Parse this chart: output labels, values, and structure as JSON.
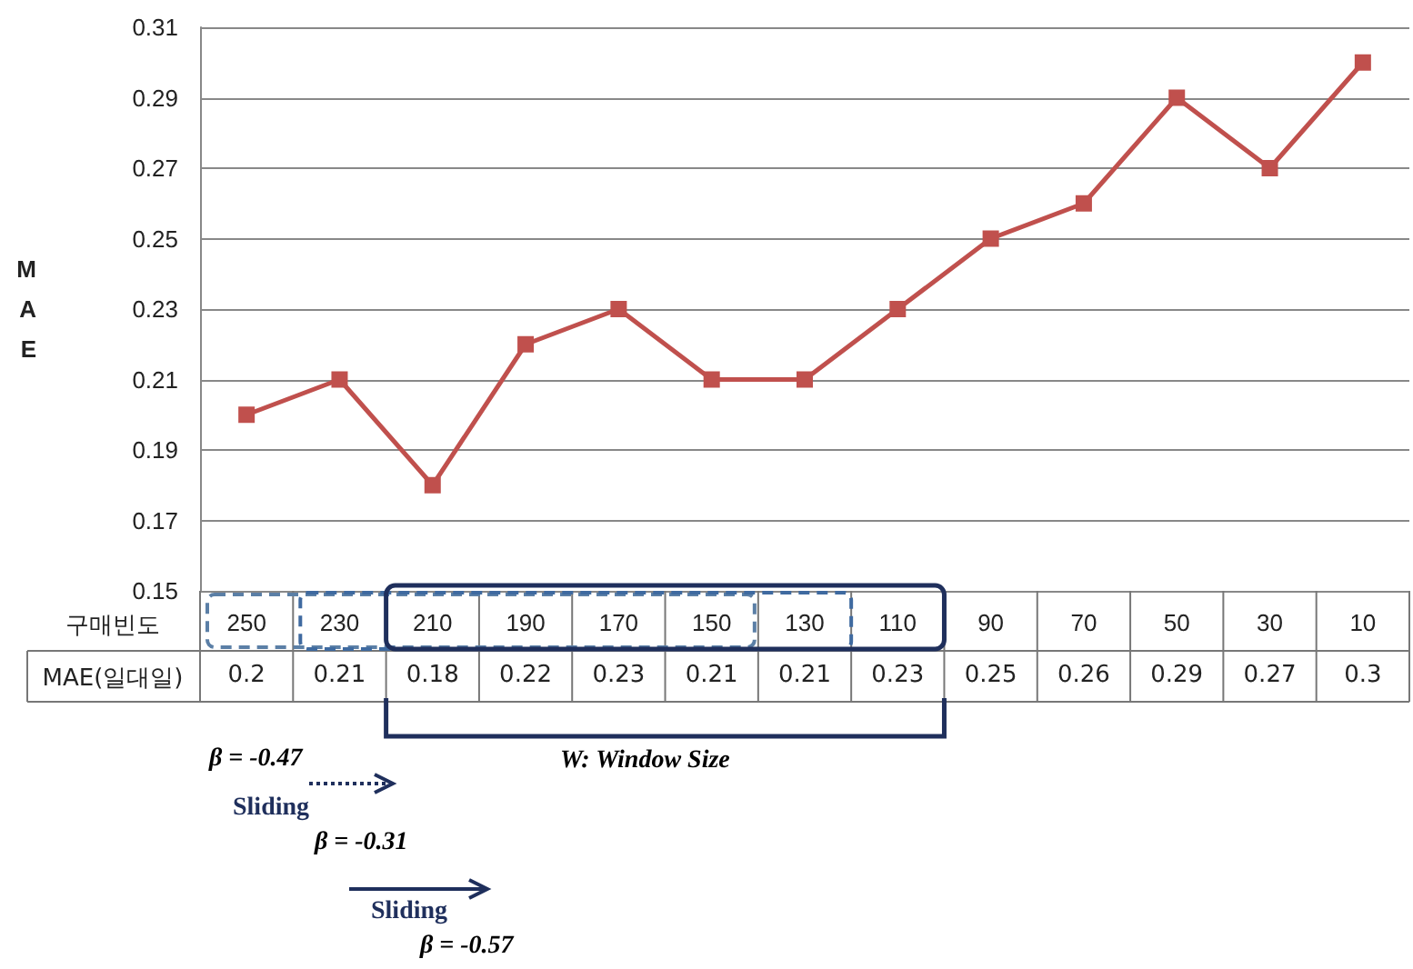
{
  "chart_data": {
    "type": "line",
    "xlabel": "구매빈도",
    "ylabel": "MAE",
    "categories": [
      "250",
      "230",
      "210",
      "190",
      "170",
      "150",
      "130",
      "110",
      "90",
      "70",
      "50",
      "30",
      "10"
    ],
    "series": [
      {
        "name": "MAE(일대일)",
        "color": "#c0504d",
        "values": [
          0.2,
          0.21,
          0.18,
          0.22,
          0.23,
          0.21,
          0.21,
          0.23,
          0.25,
          0.26,
          0.29,
          0.27,
          0.3
        ]
      }
    ],
    "ylim": [
      0.15,
      0.31
    ],
    "yticks": [
      0.15,
      0.17,
      0.19,
      0.21,
      0.23,
      0.25,
      0.27,
      0.29,
      0.31
    ],
    "grid": "y",
    "marker": "square",
    "line_style": "solid",
    "legend": false,
    "data_labels": true,
    "annotations": [
      "β = -0.47",
      "Sliding",
      "β = -0.31",
      "Sliding",
      "β = -0.57",
      "W: Window Size"
    ]
  }
}
